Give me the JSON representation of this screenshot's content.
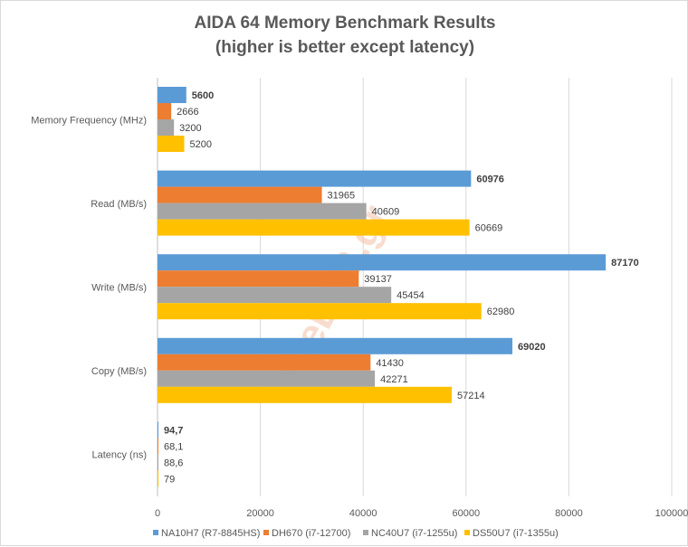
{
  "chart_data": {
    "type": "bar",
    "orientation": "horizontal",
    "title": [
      "AIDA 64 Memory Benchmark Results",
      "(higher is better except latency)"
    ],
    "categories": [
      "Memory Frequency (MHz)",
      "Read (MB/s)",
      "Write (MB/s)",
      "Copy (MB/s)",
      "Latency (ns)"
    ],
    "series": [
      {
        "name": "NA10H7 (R7-8845HS)",
        "color": "#5b9bd5",
        "values": [
          5600,
          60976,
          87170,
          69020,
          94.7
        ],
        "labels": [
          "5600",
          "60976",
          "87170",
          "69020",
          "94,7"
        ]
      },
      {
        "name": "DH670 (i7-12700)",
        "color": "#ed7d31",
        "values": [
          2666,
          31965,
          39137,
          41430,
          68.1
        ],
        "labels": [
          "2666",
          "31965",
          "39137",
          "41430",
          "68,1"
        ]
      },
      {
        "name": "NC40U7 (i7-1255u)",
        "color": "#a5a5a5",
        "values": [
          3200,
          40609,
          45454,
          42271,
          88.6
        ],
        "labels": [
          "3200",
          "40609",
          "45454",
          "42271",
          "88,6"
        ]
      },
      {
        "name": "DS50U7 (i7-1355u)",
        "color": "#ffc000",
        "values": [
          5200,
          60669,
          62980,
          57214,
          79
        ],
        "labels": [
          "5200",
          "60669",
          "62980",
          "57214",
          "79"
        ]
      }
    ],
    "xlim": [
      0,
      100000
    ],
    "xticks": [
      0,
      20000,
      40000,
      60000,
      80000,
      100000
    ],
    "grid": true,
    "legend": "bottom",
    "watermark": "theLAB.gr"
  }
}
